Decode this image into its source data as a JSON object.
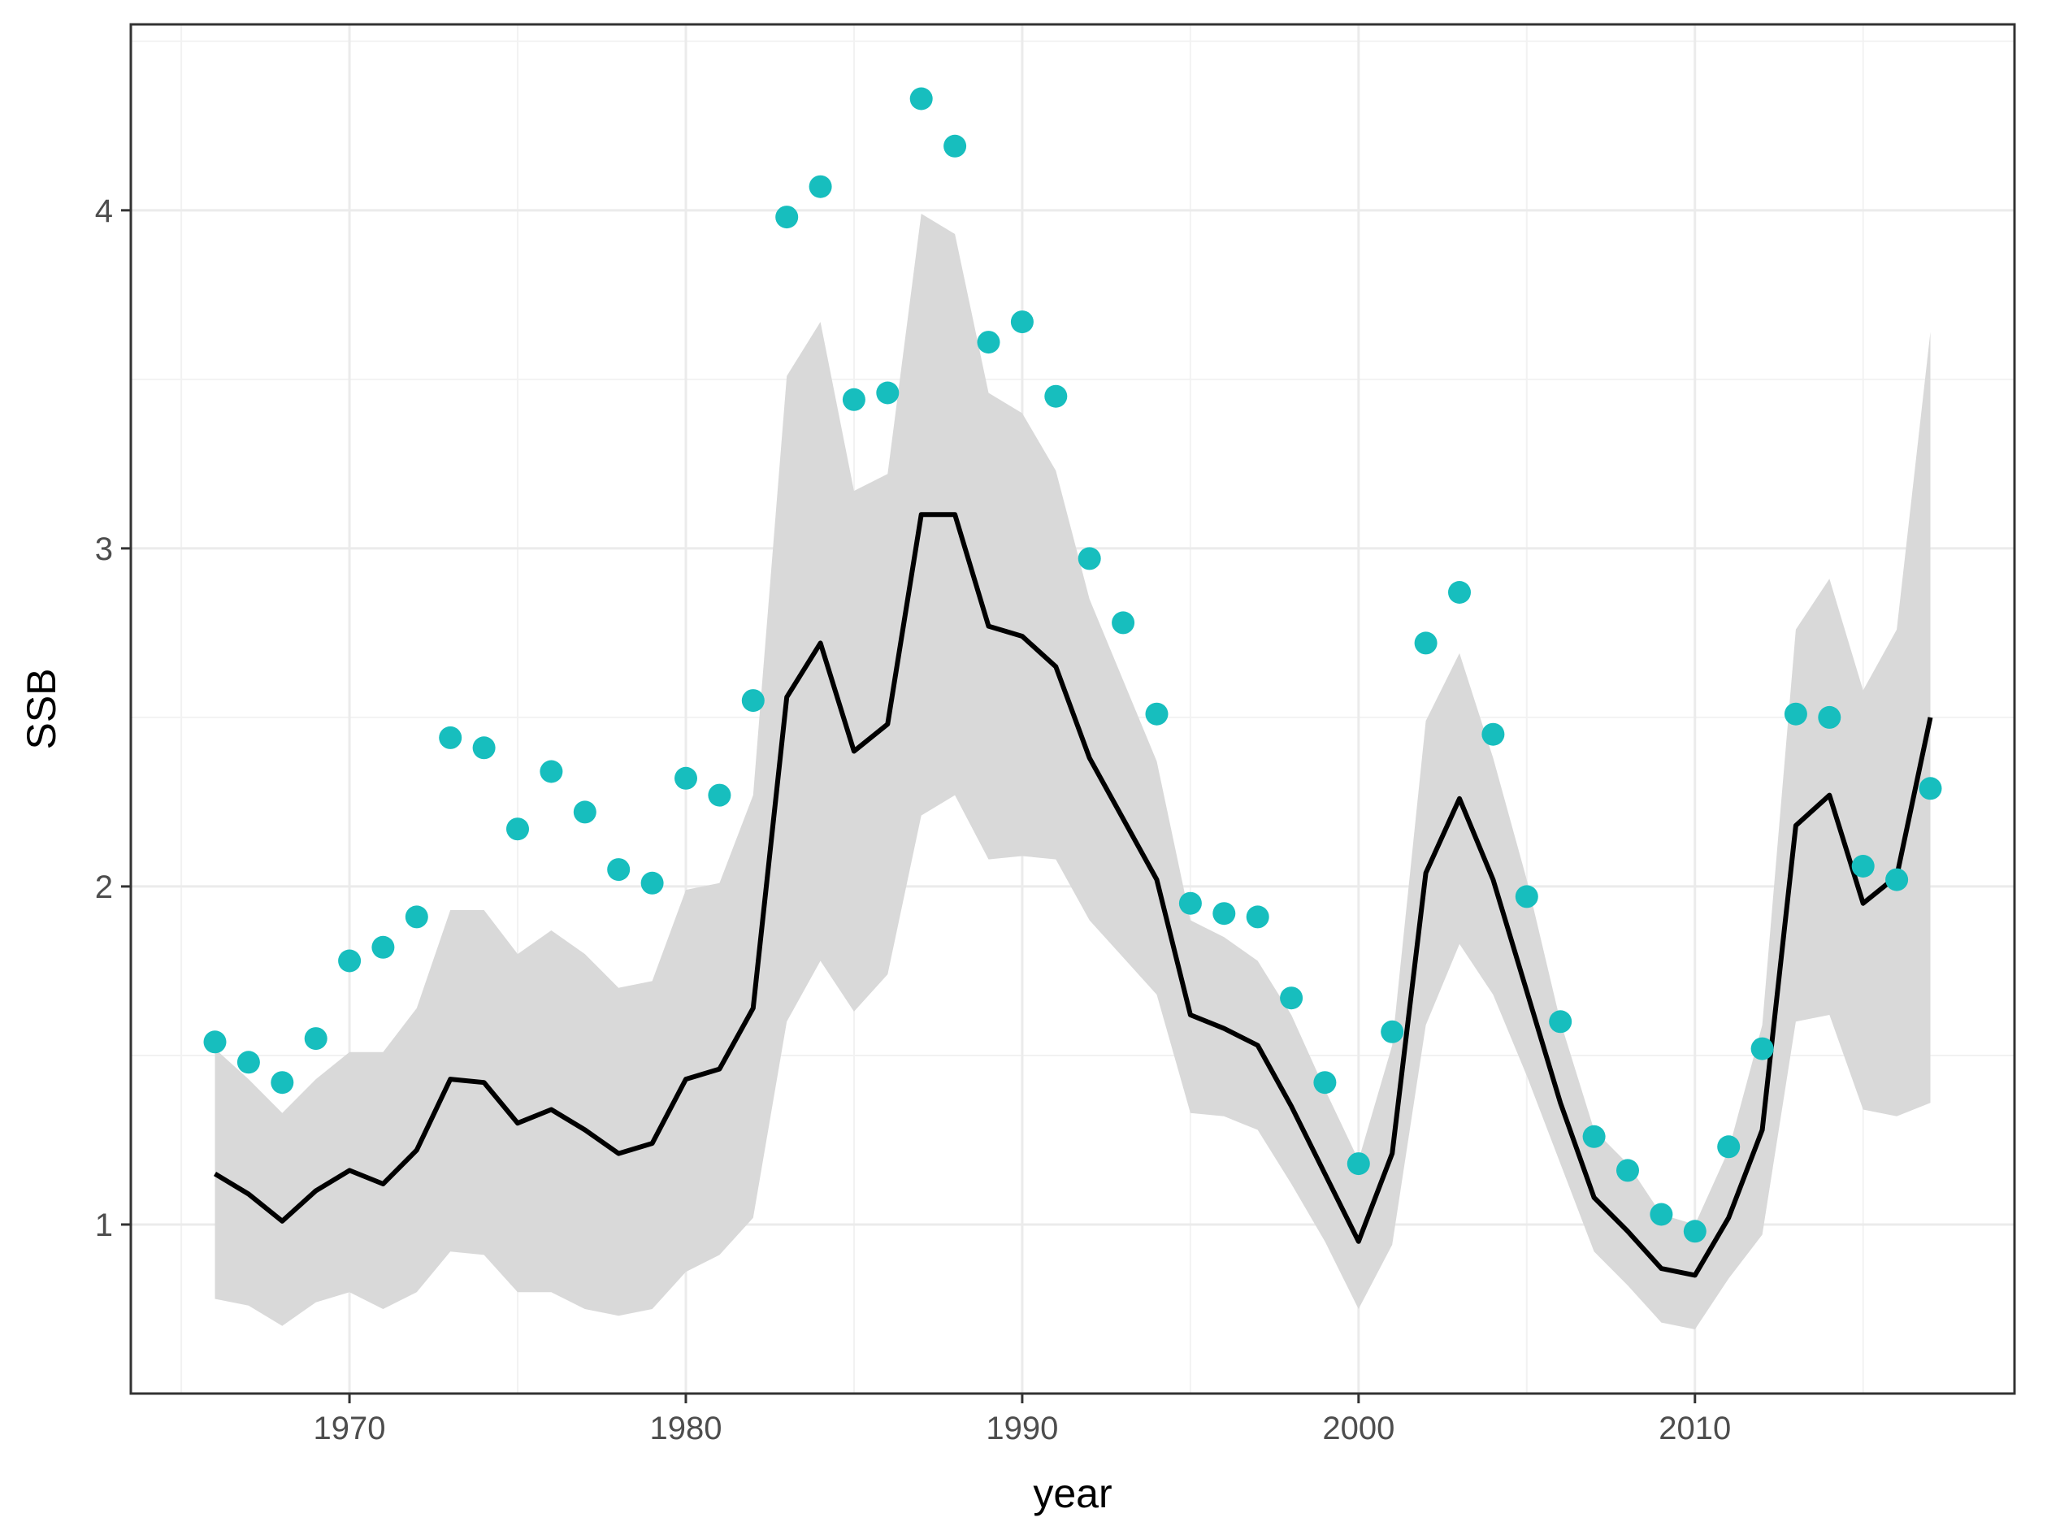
{
  "chart_data": {
    "type": "line",
    "title": "",
    "xlabel": "year",
    "ylabel": "SSB",
    "xlim": [
      1963.5,
      2019.5
    ],
    "ylim": [
      0.5,
      4.55
    ],
    "x_ticks": [
      1970,
      1980,
      1990,
      2000,
      2010
    ],
    "y_ticks": [
      1,
      2,
      3,
      4
    ],
    "x_tick_labels": [
      "1970",
      "1980",
      "1990",
      "2000",
      "2010"
    ],
    "y_tick_labels": [
      "1",
      "2",
      "3",
      "4"
    ],
    "grid": true,
    "legend": "none",
    "x": [
      1966,
      1967,
      1968,
      1969,
      1970,
      1971,
      1972,
      1973,
      1974,
      1975,
      1976,
      1977,
      1978,
      1979,
      1980,
      1981,
      1982,
      1983,
      1984,
      1985,
      1986,
      1987,
      1988,
      1989,
      1990,
      1991,
      1992,
      1993,
      1994,
      1995,
      1996,
      1997,
      1998,
      1999,
      2000,
      2001,
      2002,
      2003,
      2004,
      2005,
      2006,
      2007,
      2008,
      2009,
      2010,
      2011,
      2012,
      2013,
      2014,
      2015,
      2016,
      2017
    ],
    "series": [
      {
        "kind": "band",
        "color": "#d9d9d9",
        "lower": [
          0.78,
          0.76,
          0.7,
          0.77,
          0.8,
          0.75,
          0.8,
          0.92,
          0.91,
          0.8,
          0.8,
          0.75,
          0.73,
          0.75,
          0.86,
          0.91,
          1.02,
          1.6,
          1.78,
          1.63,
          1.74,
          2.21,
          2.27,
          2.08,
          2.09,
          2.08,
          1.9,
          1.79,
          1.68,
          1.33,
          1.32,
          1.28,
          1.12,
          0.95,
          0.75,
          0.94,
          1.59,
          1.83,
          1.68,
          1.44,
          1.18,
          0.92,
          0.82,
          0.71,
          0.69,
          0.84,
          0.97,
          1.6,
          1.62,
          1.34,
          1.32,
          1.36
        ],
        "upper": [
          1.52,
          1.43,
          1.33,
          1.43,
          1.51,
          1.51,
          1.64,
          1.93,
          1.93,
          1.8,
          1.87,
          1.8,
          1.7,
          1.72,
          1.99,
          2.01,
          2.27,
          3.51,
          3.67,
          3.17,
          3.22,
          3.99,
          3.93,
          3.46,
          3.4,
          3.23,
          2.85,
          2.61,
          2.37,
          1.9,
          1.85,
          1.78,
          1.62,
          1.4,
          1.19,
          1.53,
          2.49,
          2.69,
          2.38,
          2.02,
          1.6,
          1.28,
          1.18,
          1.03,
          1.0,
          1.22,
          1.59,
          2.76,
          2.91,
          2.58,
          2.76,
          3.64
        ]
      },
      {
        "kind": "line",
        "color": "#000000",
        "values": [
          1.15,
          1.09,
          1.01,
          1.1,
          1.16,
          1.12,
          1.22,
          1.43,
          1.42,
          1.3,
          1.34,
          1.28,
          1.21,
          1.24,
          1.43,
          1.46,
          1.64,
          2.56,
          2.72,
          2.4,
          2.48,
          3.1,
          3.1,
          2.77,
          2.74,
          2.65,
          2.38,
          2.2,
          2.02,
          1.62,
          1.58,
          1.53,
          1.35,
          1.15,
          0.95,
          1.21,
          2.04,
          2.26,
          2.02,
          1.69,
          1.36,
          1.08,
          0.98,
          0.87,
          0.85,
          1.02,
          1.28,
          2.18,
          2.27,
          1.95,
          2.03,
          2.5
        ]
      },
      {
        "kind": "points",
        "color": "#17bebe",
        "values": [
          1.54,
          1.48,
          1.42,
          1.55,
          1.78,
          1.82,
          1.91,
          2.44,
          2.41,
          2.17,
          2.34,
          2.22,
          2.05,
          2.01,
          2.32,
          2.27,
          2.55,
          3.98,
          4.07,
          3.44,
          3.46,
          4.33,
          4.19,
          3.61,
          3.67,
          3.45,
          2.97,
          2.78,
          2.51,
          1.95,
          1.92,
          1.91,
          1.67,
          1.42,
          1.18,
          1.57,
          2.72,
          2.87,
          2.45,
          1.97,
          1.6,
          1.26,
          1.16,
          1.03,
          0.98,
          1.23,
          1.52,
          2.51,
          2.5,
          2.06,
          2.02,
          2.29
        ]
      }
    ]
  }
}
